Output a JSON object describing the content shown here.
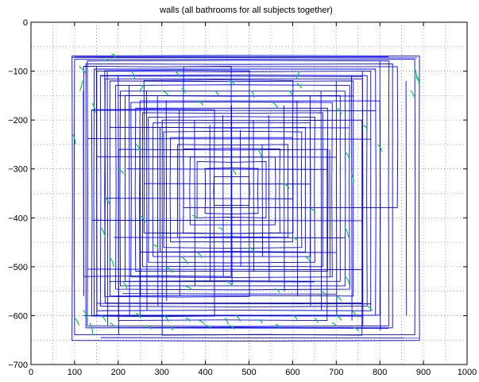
{
  "chart_data": {
    "type": "line",
    "title": "walls (all bathrooms for all subjects together)",
    "xlabel": "",
    "ylabel": "",
    "xlim": [
      0,
      1000
    ],
    "ylim": [
      -700,
      0
    ],
    "xticks": [
      0,
      100,
      200,
      300,
      400,
      500,
      600,
      700,
      800,
      900,
      1000
    ],
    "yticks": [
      0,
      -100,
      -200,
      -300,
      -400,
      -500,
      -600,
      -700
    ],
    "grid": true,
    "grid_style": "dotted",
    "colors": {
      "walls": "#0000ff",
      "accents": "#00cc33",
      "axes": "#000000"
    },
    "series": [
      {
        "role": "walls",
        "rectangles": [
          [
            95,
            70,
            890,
            650
          ],
          [
            100,
            75,
            880,
            640
          ],
          [
            125,
            85,
            830,
            625
          ],
          [
            130,
            80,
            820,
            620
          ],
          [
            145,
            95,
            790,
            600
          ],
          [
            150,
            100,
            780,
            590
          ],
          [
            160,
            110,
            770,
            580
          ],
          [
            170,
            115,
            760,
            575
          ],
          [
            180,
            120,
            740,
            560
          ],
          [
            195,
            130,
            730,
            545
          ],
          [
            205,
            140,
            720,
            540
          ],
          [
            215,
            150,
            710,
            530
          ],
          [
            230,
            165,
            690,
            520
          ],
          [
            240,
            175,
            680,
            510
          ],
          [
            255,
            185,
            670,
            500
          ],
          [
            270,
            195,
            650,
            490
          ],
          [
            280,
            205,
            640,
            480
          ],
          [
            295,
            215,
            630,
            470
          ],
          [
            305,
            225,
            620,
            460
          ],
          [
            320,
            235,
            600,
            450
          ],
          [
            335,
            250,
            590,
            440
          ],
          [
            350,
            260,
            570,
            430
          ],
          [
            365,
            275,
            560,
            415
          ],
          [
            380,
            285,
            540,
            400
          ],
          [
            400,
            300,
            520,
            390
          ],
          [
            420,
            315,
            500,
            375
          ],
          [
            120,
            90,
            460,
            520
          ],
          [
            170,
            100,
            500,
            560
          ],
          [
            250,
            160,
            800,
            600
          ],
          [
            300,
            200,
            760,
            640
          ],
          [
            140,
            180,
            420,
            600
          ],
          [
            350,
            90,
            840,
            380
          ],
          [
            200,
            260,
            680,
            610
          ],
          [
            260,
            120,
            600,
            430
          ]
        ],
        "hlines": [
          [
            100,
            820,
            -70
          ],
          [
            95,
            885,
            -72
          ],
          [
            160,
            760,
            -110
          ],
          [
            200,
            740,
            -150
          ],
          [
            140,
            790,
            -180
          ],
          [
            180,
            730,
            -215
          ],
          [
            130,
            780,
            -238
          ],
          [
            150,
            700,
            -275
          ],
          [
            220,
            680,
            -300
          ],
          [
            260,
            640,
            -330
          ],
          [
            170,
            600,
            -360
          ],
          [
            140,
            760,
            -405
          ],
          [
            190,
            720,
            -440
          ],
          [
            250,
            700,
            -470
          ],
          [
            130,
            760,
            -505
          ],
          [
            180,
            650,
            -530
          ],
          [
            210,
            700,
            -555
          ],
          [
            150,
            780,
            -575
          ],
          [
            120,
            760,
            -600
          ],
          [
            200,
            820,
            -625
          ],
          [
            160,
            890,
            -645
          ]
        ],
        "vlines": [
          [
            150,
            -90,
            -600
          ],
          [
            175,
            -100,
            -620
          ],
          [
            200,
            -110,
            -640
          ],
          [
            225,
            -130,
            -600
          ],
          [
            265,
            -140,
            -590
          ],
          [
            290,
            -150,
            -580
          ],
          [
            310,
            -160,
            -570
          ],
          [
            340,
            -180,
            -560
          ],
          [
            375,
            -200,
            -540
          ],
          [
            410,
            -210,
            -530
          ],
          [
            440,
            -190,
            -520
          ],
          [
            480,
            -220,
            -500
          ],
          [
            510,
            -200,
            -510
          ],
          [
            545,
            -190,
            -530
          ],
          [
            580,
            -170,
            -550
          ],
          [
            610,
            -160,
            -560
          ],
          [
            640,
            -150,
            -580
          ],
          [
            665,
            -140,
            -590
          ],
          [
            700,
            -120,
            -600
          ],
          [
            735,
            -110,
            -610
          ],
          [
            760,
            -100,
            -620
          ],
          [
            800,
            -80,
            -630
          ],
          [
            860,
            -120,
            -600
          ],
          [
            460,
            -170,
            -540
          ],
          [
            530,
            -250,
            -480
          ],
          [
            250,
            -220,
            -560
          ],
          [
            685,
            -260,
            -520
          ],
          [
            120,
            -140,
            -560
          ]
        ]
      },
      {
        "role": "accents",
        "strokes": [
          [
            96,
            -230,
            102,
            -250
          ],
          [
            110,
            -90,
            125,
            -105
          ],
          [
            118,
            -120,
            112,
            -140
          ],
          [
            140,
            -165,
            148,
            -185
          ],
          [
            165,
            -75,
            180,
            -80
          ],
          [
            185,
            -65,
            195,
            -72
          ],
          [
            230,
            -100,
            238,
            -115
          ],
          [
            260,
            -125,
            250,
            -140
          ],
          [
            300,
            -140,
            315,
            -150
          ],
          [
            330,
            -100,
            340,
            -112
          ],
          [
            345,
            -135,
            355,
            -145
          ],
          [
            380,
            -160,
            395,
            -170
          ],
          [
            420,
            -140,
            430,
            -150
          ],
          [
            455,
            -120,
            468,
            -128
          ],
          [
            505,
            -140,
            512,
            -155
          ],
          [
            555,
            -165,
            565,
            -175
          ],
          [
            590,
            -140,
            600,
            -150
          ],
          [
            610,
            -125,
            620,
            -135
          ],
          [
            615,
            -100,
            608,
            -115
          ],
          [
            700,
            -175,
            712,
            -188
          ],
          [
            720,
            -265,
            730,
            -280
          ],
          [
            735,
            -310,
            740,
            -330
          ],
          [
            760,
            -210,
            772,
            -220
          ],
          [
            795,
            -250,
            805,
            -265
          ],
          [
            870,
            -140,
            880,
            -155
          ],
          [
            880,
            -95,
            885,
            -118
          ],
          [
            885,
            -110,
            890,
            -130
          ],
          [
            160,
            -420,
            170,
            -440
          ],
          [
            180,
            -480,
            190,
            -500
          ],
          [
            210,
            -530,
            220,
            -545
          ],
          [
            250,
            -395,
            262,
            -410
          ],
          [
            310,
            -500,
            325,
            -512
          ],
          [
            345,
            -480,
            360,
            -495
          ],
          [
            355,
            -540,
            370,
            -548
          ],
          [
            380,
            -470,
            392,
            -482
          ],
          [
            450,
            -530,
            462,
            -540
          ],
          [
            500,
            -460,
            512,
            -470
          ],
          [
            560,
            -545,
            570,
            -553
          ],
          [
            630,
            -480,
            640,
            -490
          ],
          [
            665,
            -550,
            676,
            -558
          ],
          [
            700,
            -560,
            712,
            -570
          ],
          [
            720,
            -520,
            730,
            -535
          ],
          [
            700,
            -600,
            712,
            -610
          ],
          [
            735,
            -590,
            745,
            -600
          ],
          [
            770,
            -580,
            782,
            -590
          ],
          [
            100,
            -605,
            110,
            -620
          ],
          [
            120,
            -590,
            130,
            -605
          ],
          [
            135,
            -615,
            142,
            -640
          ],
          [
            160,
            -600,
            172,
            -612
          ],
          [
            180,
            -615,
            190,
            -622
          ],
          [
            240,
            -595,
            252,
            -605
          ],
          [
            265,
            -620,
            275,
            -628
          ],
          [
            305,
            -600,
            315,
            -612
          ],
          [
            315,
            -620,
            325,
            -630
          ],
          [
            355,
            -605,
            365,
            -612
          ],
          [
            385,
            -610,
            398,
            -618
          ],
          [
            400,
            -620,
            412,
            -625
          ],
          [
            445,
            -605,
            452,
            -618
          ],
          [
            455,
            -620,
            466,
            -628
          ],
          [
            470,
            -600,
            480,
            -612
          ],
          [
            520,
            -608,
            530,
            -615
          ],
          [
            560,
            -618,
            572,
            -625
          ],
          [
            600,
            -600,
            610,
            -608
          ],
          [
            650,
            -605,
            658,
            -615
          ],
          [
            690,
            -615,
            700,
            -622
          ],
          [
            740,
            -625,
            752,
            -632
          ],
          [
            170,
            -360,
            180,
            -372
          ],
          [
            200,
            -300,
            212,
            -310
          ],
          [
            240,
            -250,
            250,
            -262
          ],
          [
            580,
            -330,
            592,
            -340
          ],
          [
            640,
            -380,
            652,
            -390
          ],
          [
            720,
            -420,
            728,
            -440
          ],
          [
            280,
            -455,
            292,
            -462
          ],
          [
            460,
            -300,
            470,
            -312
          ],
          [
            520,
            -260,
            528,
            -275
          ],
          [
            370,
            -395,
            382,
            -402
          ],
          [
            430,
            -420,
            442,
            -428
          ],
          [
            600,
            -440,
            612,
            -448
          ]
        ]
      }
    ]
  }
}
